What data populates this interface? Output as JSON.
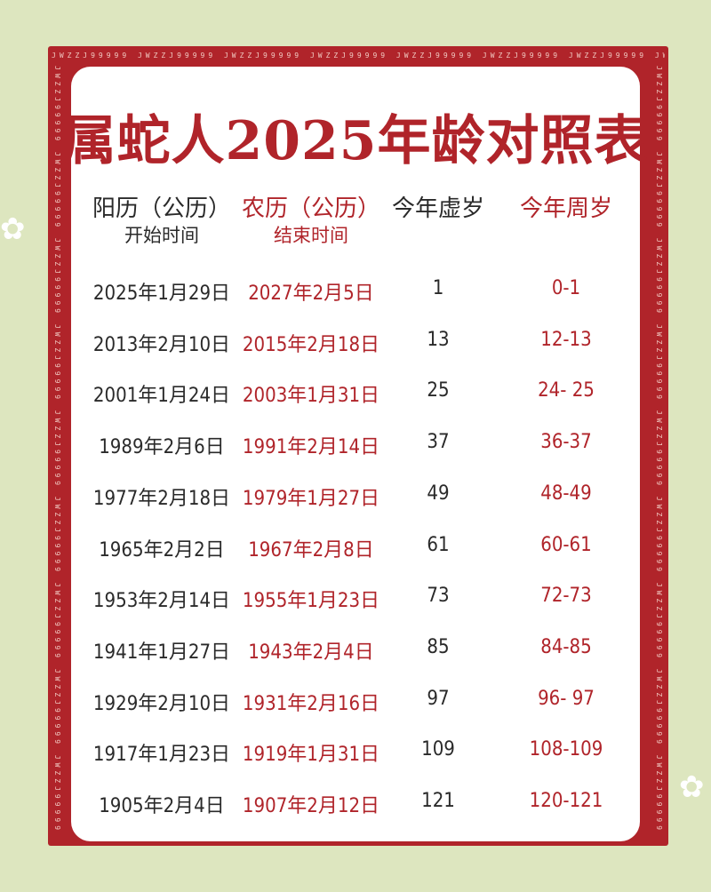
{
  "title": "属蛇人2025年龄对照表",
  "border_text": "JWZZJ99999 JWZZJ99999 JWZZJ99999 JWZZJ99999 JWZZJ99999 JWZZJ99999 JWZZJ99999 JWZZJ99999 JWZZJ99999 JWZZJ99999",
  "colors": {
    "background": "#dde6bf",
    "frame": "#b0242a",
    "text_dark": "#2a2a2a",
    "text_red": "#b0242a"
  },
  "headers": [
    {
      "label": "阳历（公历）",
      "sub": "开始时间"
    },
    {
      "label": "农历（公历）",
      "sub": "结束时间"
    },
    {
      "label": "今年虚岁",
      "sub": ""
    },
    {
      "label": "今年周岁",
      "sub": ""
    }
  ],
  "rows": [
    [
      "2025年1月29日",
      "2027年2月5日",
      "1",
      "0-1"
    ],
    [
      "2013年2月10日",
      "2015年2月18日",
      "13",
      "12-13"
    ],
    [
      "2001年1月24日",
      "2003年1月31日",
      "25",
      "24- 25"
    ],
    [
      "1989年2月6日",
      "1991年2月14日",
      "37",
      "36-37"
    ],
    [
      "1977年2月18日",
      "1979年1月27日",
      "49",
      "48-49"
    ],
    [
      "1965年2月2日",
      "1967年2月8日",
      "61",
      "60-61"
    ],
    [
      "1953年2月14日",
      "1955年1月23日",
      "73",
      "72-73"
    ],
    [
      "1941年1月27日",
      "1943年2月4日",
      "85",
      "84-85"
    ],
    [
      "1929年2月10日",
      "1931年2月16日",
      "97",
      "96- 97"
    ],
    [
      "1917年1月23日",
      "1919年1月31日",
      "109",
      "108-109"
    ],
    [
      "1905年2月4日",
      "1907年2月12日",
      "121",
      "120-121"
    ]
  ]
}
